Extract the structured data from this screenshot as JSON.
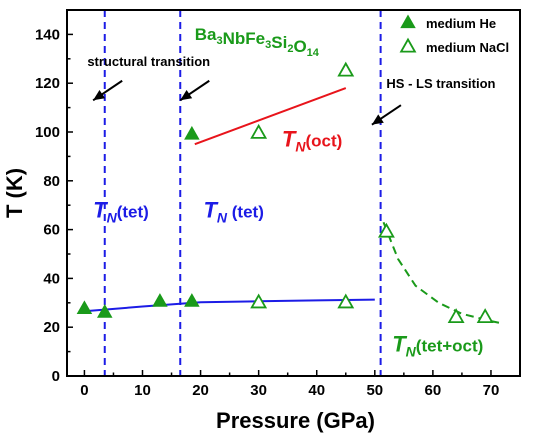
{
  "chart_data": {
    "type": "scatter",
    "title": "",
    "formula": {
      "parts": [
        {
          "t": "Ba",
          "sub": false
        },
        {
          "t": "3",
          "sub": true
        },
        {
          "t": "NbFe",
          "sub": false
        },
        {
          "t": "3",
          "sub": true
        },
        {
          "t": "Si",
          "sub": false
        },
        {
          "t": "2",
          "sub": true
        },
        {
          "t": "O",
          "sub": false
        },
        {
          "t": "14",
          "sub": true
        }
      ]
    },
    "xlabel": "Pressure (GPa)",
    "ylabel": "T  (K)",
    "xlim": [
      -3,
      75
    ],
    "ylim": [
      0,
      150
    ],
    "xticks": [
      0,
      10,
      20,
      30,
      40,
      50,
      60,
      70
    ],
    "yticks": [
      0,
      20,
      40,
      60,
      80,
      100,
      120,
      140
    ],
    "grid": false,
    "legend_position": "top-right",
    "colors": {
      "green": "#1a9a1a",
      "blue": "#1c1ce6",
      "red": "#e8141b",
      "axis": "#000000"
    },
    "series": [
      {
        "name": "medium He",
        "marker": "filled-triangle",
        "color": "#1a9a1a",
        "points": [
          [
            0,
            27.5
          ],
          [
            3.5,
            26
          ],
          [
            13,
            30.5
          ],
          [
            18.5,
            30.5
          ],
          [
            18.5,
            99
          ]
        ]
      },
      {
        "name": "medium NaCl",
        "marker": "open-triangle",
        "color": "#1a9a1a",
        "points": [
          [
            30,
            30
          ],
          [
            30,
            99.5
          ],
          [
            45,
            30
          ],
          [
            45,
            125
          ],
          [
            52,
            59
          ],
          [
            64,
            24
          ],
          [
            69,
            24
          ]
        ]
      }
    ],
    "fit_lines": [
      {
        "id": "tn-tet-fit",
        "color": "#1c1ce6",
        "style": "solid",
        "points": [
          [
            0,
            26.5
          ],
          [
            10,
            28.5
          ],
          [
            20,
            30.2
          ],
          [
            30,
            30.6
          ],
          [
            40,
            31
          ],
          [
            50,
            31.3
          ]
        ]
      },
      {
        "id": "tn-oct-fit",
        "color": "#e8141b",
        "style": "solid",
        "points": [
          [
            19,
            95
          ],
          [
            45,
            118
          ]
        ]
      },
      {
        "id": "tn-tetoct-fit",
        "color": "#1a9a1a",
        "style": "dashed",
        "points": [
          [
            51.5,
            63
          ],
          [
            54,
            48
          ],
          [
            57,
            37
          ],
          [
            61,
            30
          ],
          [
            65,
            25.5
          ],
          [
            70,
            22.5
          ],
          [
            72,
            21.5
          ]
        ]
      }
    ],
    "vlines": [
      {
        "x": 3.5,
        "color": "#1c1ce6"
      },
      {
        "x": 16.5,
        "color": "#1c1ce6"
      },
      {
        "x": 51,
        "color": "#1c1ce6"
      }
    ],
    "annotations": [
      {
        "text": "structural transition",
        "x": 0.5,
        "y": 127
      },
      {
        "text": "HS - LS transition",
        "x": 52,
        "y": 118
      }
    ],
    "arrows": [
      {
        "from": [
          6.5,
          121
        ],
        "to": [
          1.5,
          113
        ]
      },
      {
        "from": [
          21.5,
          121
        ],
        "to": [
          16.5,
          113
        ]
      },
      {
        "from": [
          54.5,
          111
        ],
        "to": [
          49.5,
          103
        ]
      }
    ],
    "region_labels": [
      {
        "main": "T",
        "sub": "N",
        "paren": "(tet)",
        "color": "#1c1ce6",
        "x": 1.5,
        "y": 65
      },
      {
        "main": "T",
        "sub": "N",
        "paren": " (tet)",
        "color": "#1c1ce6",
        "x": 20.5,
        "y": 65
      },
      {
        "main": "T",
        "sub": "N",
        "paren": "(oct)",
        "color": "#e8141b",
        "x": 34,
        "y": 94
      },
      {
        "main": "T",
        "sub": "N",
        "paren": "(tet+oct)",
        "color": "#1a9a1a",
        "x": 53,
        "y": 10
      }
    ]
  }
}
